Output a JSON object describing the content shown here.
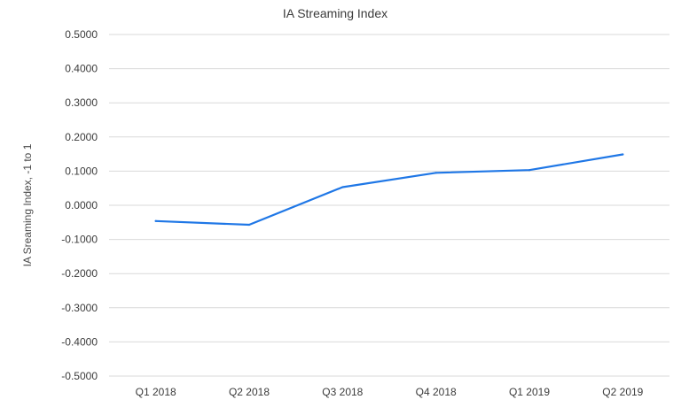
{
  "chart_data": {
    "type": "line",
    "title": "IA Streaming Index",
    "xlabel": "",
    "ylabel": "IA Sreaming Index, -1 to 1",
    "categories": [
      "Q1 2018",
      "Q2 2018",
      "Q3 2018",
      "Q4 2018",
      "Q1 2019",
      "Q2 2019"
    ],
    "series": [
      {
        "values": [
          -0.046,
          -0.057,
          0.053,
          0.095,
          0.103,
          0.149
        ],
        "color": "#1f77e6"
      }
    ],
    "ylim": [
      -0.5,
      0.5
    ],
    "yticks": [
      0.5,
      0.4,
      0.3,
      0.2,
      0.1,
      0.0,
      -0.1,
      -0.2,
      -0.3,
      -0.4,
      -0.5
    ],
    "ytick_labels": [
      "0.5000",
      "0.4000",
      "0.3000",
      "0.2000",
      "0.1000",
      "0.0000",
      "-0.1000",
      "-0.2000",
      "-0.3000",
      "-0.4000",
      "-0.5000"
    ],
    "grid": true,
    "legend": "none"
  }
}
